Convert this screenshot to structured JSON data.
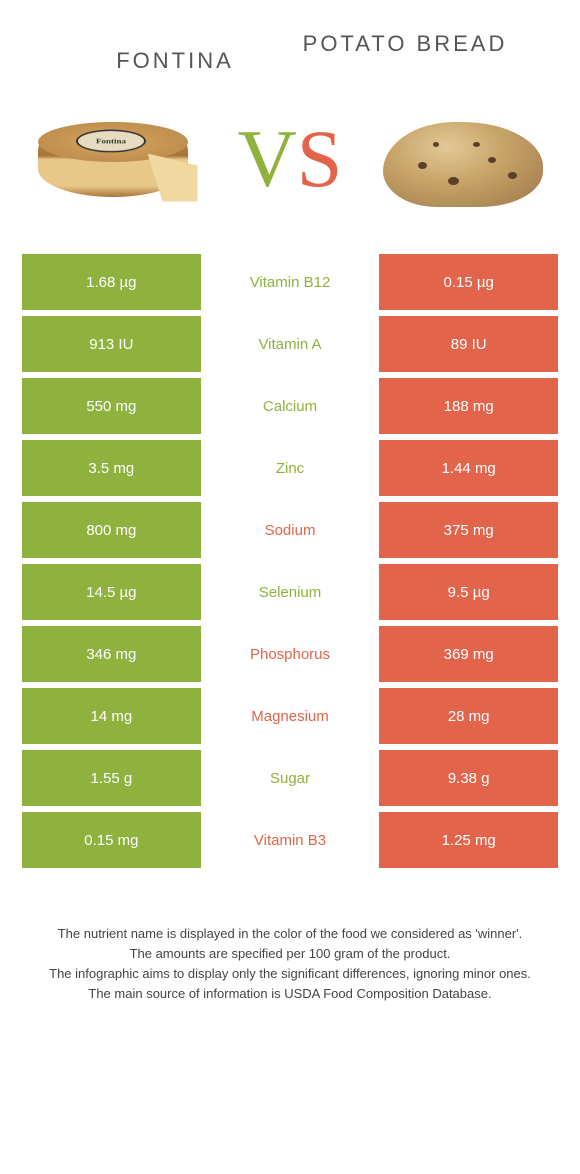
{
  "comparison": {
    "left_title": "Fontina",
    "right_title": "Potato Bread",
    "vs_v": "V",
    "vs_s": "S",
    "left_color": "#8fb23f",
    "right_color": "#e2644a",
    "cheese_label": "Fontina"
  },
  "rows": [
    {
      "left": "1.68 µg",
      "nutrient": "Vitamin B12",
      "right": "0.15 µg",
      "winner": "left"
    },
    {
      "left": "913 IU",
      "nutrient": "Vitamin A",
      "right": "89 IU",
      "winner": "left"
    },
    {
      "left": "550 mg",
      "nutrient": "Calcium",
      "right": "188 mg",
      "winner": "left"
    },
    {
      "left": "3.5 mg",
      "nutrient": "Zinc",
      "right": "1.44 mg",
      "winner": "left"
    },
    {
      "left": "800 mg",
      "nutrient": "Sodium",
      "right": "375 mg",
      "winner": "right"
    },
    {
      "left": "14.5 µg",
      "nutrient": "Selenium",
      "right": "9.5 µg",
      "winner": "left"
    },
    {
      "left": "346 mg",
      "nutrient": "Phosphorus",
      "right": "369 mg",
      "winner": "right"
    },
    {
      "left": "14 mg",
      "nutrient": "Magnesium",
      "right": "28 mg",
      "winner": "right"
    },
    {
      "left": "1.55 g",
      "nutrient": "Sugar",
      "right": "9.38 g",
      "winner": "left"
    },
    {
      "left": "0.15 mg",
      "nutrient": "Vitamin B3",
      "right": "1.25 mg",
      "winner": "right"
    }
  ],
  "footer": {
    "line1": "The nutrient name is displayed in the color of the food we considered as 'winner'.",
    "line2": "The amounts are specified per 100 gram of the product.",
    "line3": "The infographic aims to display only the significant differences, ignoring minor ones.",
    "line4": "The main source of information is USDA Food Composition Database."
  }
}
